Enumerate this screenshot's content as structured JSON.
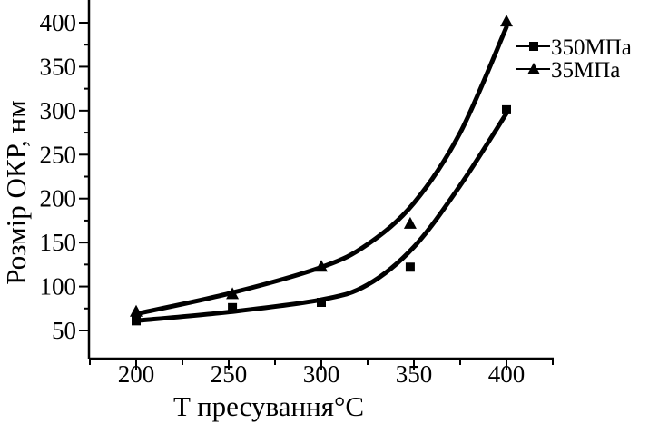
{
  "chart_data": {
    "type": "scatter",
    "title": "",
    "xlabel": "T пресування°C",
    "ylabel": "Розмір ОКР, нм",
    "xlim": [
      175,
      425
    ],
    "ylim": [
      35,
      410
    ],
    "x_ticks": [
      200,
      250,
      300,
      350,
      400
    ],
    "y_ticks": [
      50,
      100,
      150,
      200,
      250,
      300,
      350,
      400
    ],
    "grid": false,
    "legend_position": "top-right",
    "series": [
      {
        "name": "350МПа",
        "marker": "square",
        "points": [
          {
            "x": 200,
            "y": 61
          },
          {
            "x": 252,
            "y": 76
          },
          {
            "x": 300,
            "y": 82
          },
          {
            "x": 348,
            "y": 122
          },
          {
            "x": 400,
            "y": 301
          }
        ],
        "fit_curve": [
          {
            "x": 200,
            "y": 61
          },
          {
            "x": 250,
            "y": 71
          },
          {
            "x": 300,
            "y": 85
          },
          {
            "x": 325,
            "y": 102
          },
          {
            "x": 350,
            "y": 145
          },
          {
            "x": 375,
            "y": 215
          },
          {
            "x": 400,
            "y": 297
          }
        ]
      },
      {
        "name": "35МПа",
        "marker": "triangle",
        "points": [
          {
            "x": 200,
            "y": 72
          },
          {
            "x": 252,
            "y": 92
          },
          {
            "x": 300,
            "y": 123
          },
          {
            "x": 348,
            "y": 172
          },
          {
            "x": 400,
            "y": 402
          }
        ],
        "fit_curve": [
          {
            "x": 200,
            "y": 69
          },
          {
            "x": 250,
            "y": 92
          },
          {
            "x": 300,
            "y": 122
          },
          {
            "x": 325,
            "y": 148
          },
          {
            "x": 350,
            "y": 195
          },
          {
            "x": 375,
            "y": 275
          },
          {
            "x": 400,
            "y": 395
          }
        ]
      }
    ]
  }
}
